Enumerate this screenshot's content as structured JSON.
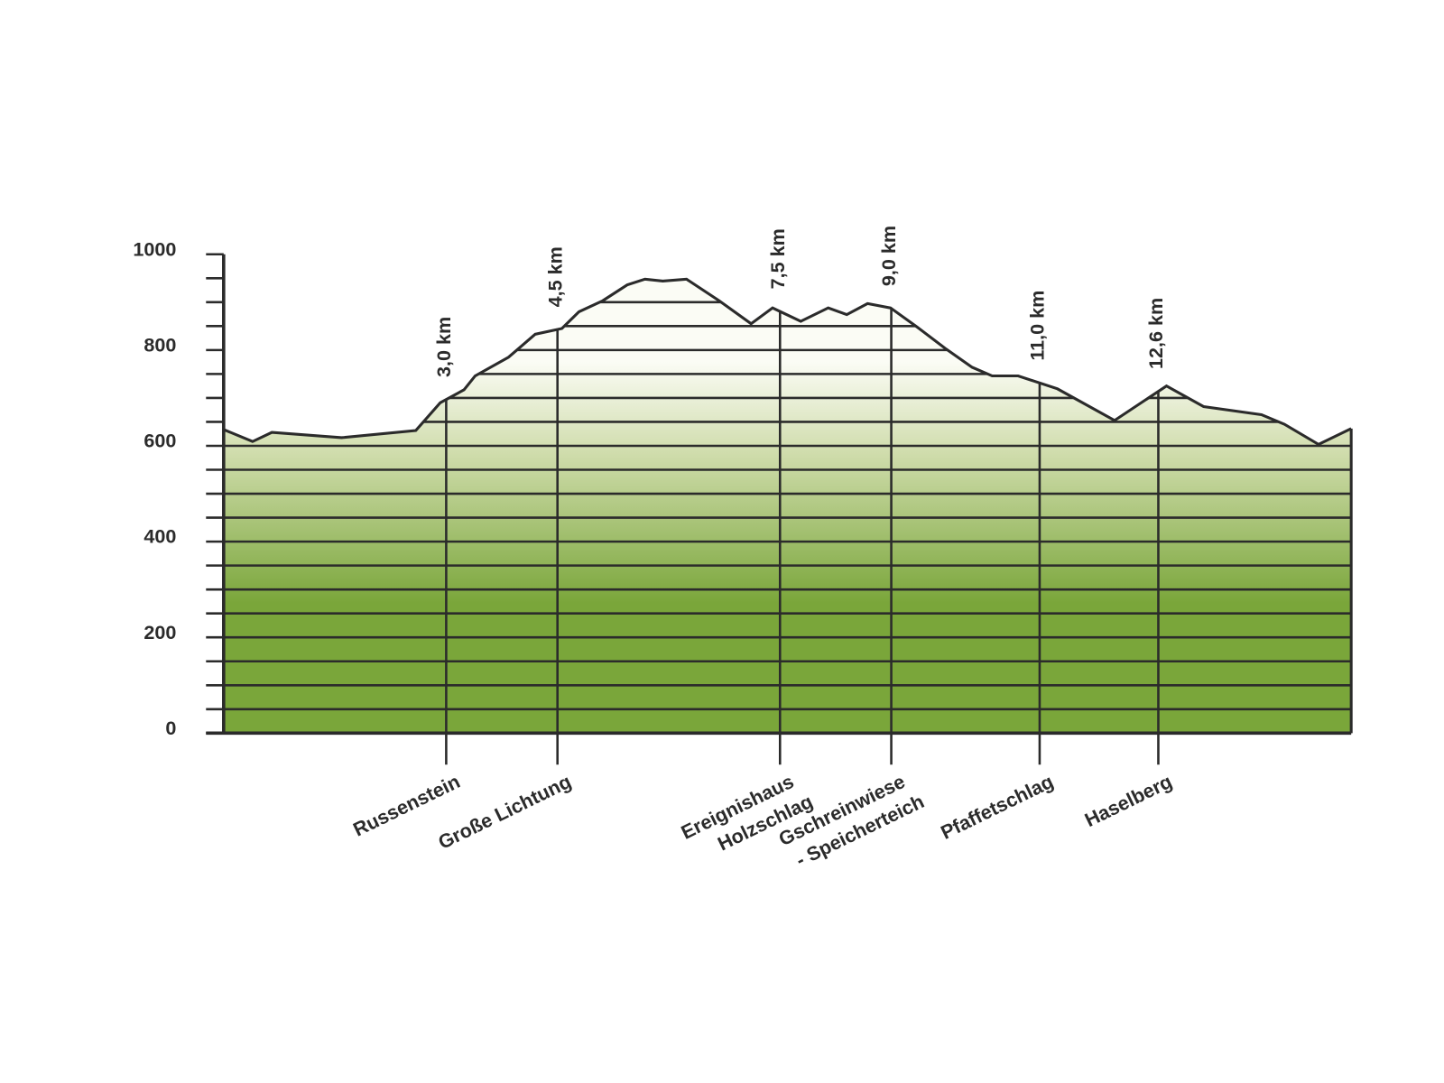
{
  "chart_data": {
    "type": "area",
    "x": [
      0,
      0.39,
      0.65,
      1.59,
      2.59,
      2.92,
      3.24,
      3.39,
      3.84,
      4.2,
      4.56,
      4.79,
      5.11,
      5.44,
      5.68,
      5.92,
      6.24,
      6.68,
      7.11,
      7.4,
      7.78,
      8.15,
      8.4,
      8.68,
      8.99,
      9.34,
      9.74,
      10.09,
      10.36,
      10.71,
      11.24,
      12.01,
      12.71,
      13.21,
      13.99,
      14.3,
      14.76,
      15.2
    ],
    "values": [
      634,
      609,
      628,
      617,
      632,
      690,
      717,
      746,
      785,
      833,
      845,
      880,
      903,
      936,
      948,
      944,
      948,
      903,
      855,
      888,
      860,
      888,
      874,
      897,
      888,
      849,
      802,
      764,
      746,
      746,
      719,
      653,
      725,
      682,
      665,
      645,
      603,
      636
    ],
    "xlim": [
      0,
      15.2
    ],
    "ylim": [
      0,
      1000
    ],
    "yticks": [
      0,
      200,
      400,
      600,
      800,
      1000
    ],
    "yminorticks": [
      50,
      100,
      150,
      250,
      300,
      350,
      450,
      500,
      550,
      650,
      700,
      750,
      850,
      900,
      950
    ],
    "grid": true,
    "colors": {
      "line": "#2b2b2b",
      "top": "#fbfcf5",
      "middle": "#cfdcab",
      "bottom": "#7aa63a"
    },
    "markers": [
      {
        "x": {
          "value": 3.0,
          "label": "3,0 km"
        },
        "place": [
          "Russenstein"
        ]
      },
      {
        "x": {
          "value": 4.5,
          "label": "4,5 km"
        },
        "place": [
          "Große Lichtung"
        ]
      },
      {
        "x": {
          "value": 7.5,
          "label": "7,5 km"
        },
        "place": [
          "Ereignishaus",
          "Holzschlag"
        ]
      },
      {
        "x": {
          "value": 9.0,
          "label": "9,0 km"
        },
        "place": [
          "Gschreinwiese",
          "- Speicherteich"
        ]
      },
      {
        "x": {
          "value": 11.0,
          "label": "11,0 km"
        },
        "place": [
          "Pfaffetschlag"
        ]
      },
      {
        "x": {
          "value": 12.6,
          "label": "12,6 km"
        },
        "place": [
          "Haselberg"
        ]
      }
    ]
  }
}
